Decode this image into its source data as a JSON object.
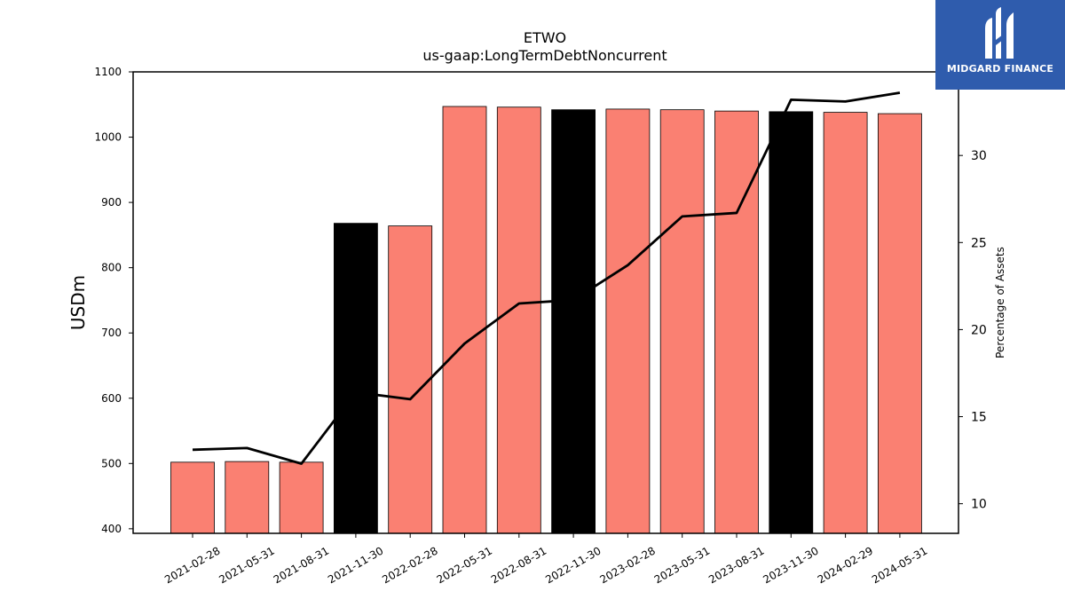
{
  "logo": {
    "text": "MIDGARD FINANCE",
    "icon": "midgard-logo-icon",
    "background": "#2f5cad"
  },
  "chart_data": {
    "type": "bar",
    "title": "ETWO",
    "subtitle": "us-gaap:LongTermDebtNoncurrent",
    "ylabel": "USDm",
    "y2label": "Percentage of Assets",
    "ylim": [
      393,
      1100
    ],
    "y2lim": [
      8.3,
      34.8
    ],
    "yticks": [
      400,
      500,
      600,
      700,
      800,
      900,
      1000,
      1100
    ],
    "y2ticks": [
      10,
      15,
      20,
      25,
      30
    ],
    "categories": [
      "2021-02-28",
      "2021-05-31",
      "2021-08-31",
      "2021-11-30",
      "2022-02-28",
      "2022-05-31",
      "2022-08-31",
      "2022-11-30",
      "2023-02-28",
      "2023-05-31",
      "2023-08-31",
      "2023-11-30",
      "2024-02-29",
      "2024-05-31"
    ],
    "series": [
      {
        "type": "bar",
        "values": [
          502,
          503,
          502,
          868,
          864,
          1047,
          1046,
          1042,
          1043,
          1042,
          1040,
          1039,
          1038,
          1036
        ],
        "colors": [
          "#fa8072",
          "#fa8072",
          "#fa8072",
          "#000000",
          "#fa8072",
          "#fa8072",
          "#fa8072",
          "#000000",
          "#fa8072",
          "#fa8072",
          "#fa8072",
          "#000000",
          "#fa8072",
          "#fa8072"
        ]
      },
      {
        "type": "line",
        "axis": "right",
        "color": "#000000",
        "values": [
          13.1,
          13.2,
          12.3,
          16.4,
          16.0,
          19.2,
          21.5,
          21.7,
          23.7,
          26.5,
          26.7,
          33.2,
          33.1,
          33.6
        ]
      }
    ],
    "grid": false,
    "legend": "none"
  }
}
